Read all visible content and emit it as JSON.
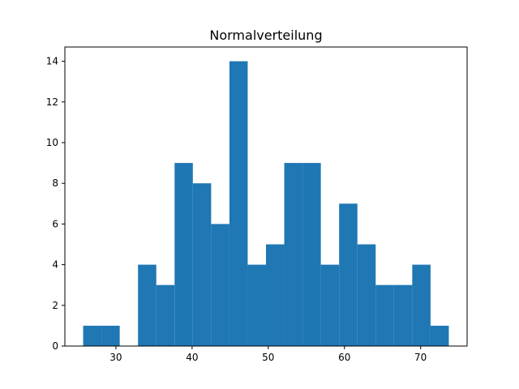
{
  "chart_data": {
    "type": "bar",
    "title": "Normalverteilung",
    "xlabel": "",
    "ylabel": "",
    "xlim": [
      23.3,
      76.1
    ],
    "ylim": [
      0,
      14.7
    ],
    "xticks": [
      30,
      40,
      50,
      60,
      70
    ],
    "yticks": [
      0,
      2,
      4,
      6,
      8,
      10,
      12,
      14
    ],
    "grid": false,
    "bar_color": "#1f77b4",
    "bins": [
      {
        "x0": 25.7,
        "x1": 28.1,
        "count": 1
      },
      {
        "x0": 28.1,
        "x1": 30.5,
        "count": 1
      },
      {
        "x0": 30.5,
        "x1": 32.9,
        "count": 0
      },
      {
        "x0": 32.9,
        "x1": 35.3,
        "count": 4
      },
      {
        "x0": 35.3,
        "x1": 37.7,
        "count": 3
      },
      {
        "x0": 37.7,
        "x1": 40.1,
        "count": 9
      },
      {
        "x0": 40.1,
        "x1": 42.5,
        "count": 8
      },
      {
        "x0": 42.5,
        "x1": 44.9,
        "count": 6
      },
      {
        "x0": 44.9,
        "x1": 47.3,
        "count": 14
      },
      {
        "x0": 47.3,
        "x1": 49.7,
        "count": 4
      },
      {
        "x0": 49.7,
        "x1": 52.1,
        "count": 5
      },
      {
        "x0": 52.1,
        "x1": 54.5,
        "count": 9
      },
      {
        "x0": 54.5,
        "x1": 56.9,
        "count": 9
      },
      {
        "x0": 56.9,
        "x1": 59.3,
        "count": 4
      },
      {
        "x0": 59.3,
        "x1": 61.7,
        "count": 7
      },
      {
        "x0": 61.7,
        "x1": 64.1,
        "count": 5
      },
      {
        "x0": 64.1,
        "x1": 66.5,
        "count": 3
      },
      {
        "x0": 66.5,
        "x1": 68.9,
        "count": 3
      },
      {
        "x0": 68.9,
        "x1": 71.3,
        "count": 4
      },
      {
        "x0": 71.3,
        "x1": 73.7,
        "count": 1
      }
    ]
  }
}
